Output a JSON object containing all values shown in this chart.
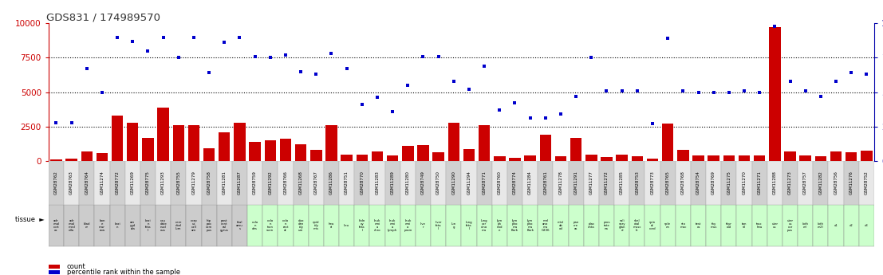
{
  "title": "GDS831 / 174989570",
  "samples": [
    "GSM28762",
    "GSM28763",
    "GSM28764",
    "GSM11274",
    "GSM28772",
    "GSM11269",
    "GSM28775",
    "GSM11293",
    "GSM28755",
    "GSM11279",
    "GSM28758",
    "GSM11281",
    "GSM11287",
    "GSM28759",
    "GSM11292",
    "GSM28766",
    "GSM11268",
    "GSM28767",
    "GSM11286",
    "GSM28751",
    "GSM28770",
    "GSM11283",
    "GSM11289",
    "GSM11280",
    "GSM28749",
    "GSM28750",
    "GSM11290",
    "GSM11294",
    "GSM28771",
    "GSM28760",
    "GSM28774",
    "GSM11284",
    "GSM28761",
    "GSM11278",
    "GSM11291",
    "GSM11277",
    "GSM11272",
    "GSM11285",
    "GSM28753",
    "GSM28773",
    "GSM28765",
    "GSM28768",
    "GSM28754",
    "GSM28769",
    "GSM11275",
    "GSM11270",
    "GSM11271",
    "GSM11288",
    "GSM11273",
    "GSM28757",
    "GSM11282",
    "GSM28756",
    "GSM11276",
    "GSM28752"
  ],
  "tissues": [
    "adr\nenal\ncort\nex",
    "adr\nenal\nmed\nulla",
    "blad\ner",
    "bon\ne\nmar\nrow",
    "brai\nn",
    "am\nygd\nala",
    "brai\nn\nfeta\nl",
    "cau\ndate\nnucl\neus",
    "cere\nebel\nlum",
    "corp\nus\ncall\nam",
    "hip\npoc\ncam\npus",
    "post\ncent\nral\ngyrus",
    "thal\namu\ns",
    "colo\nn\ndes",
    "colo\nn\ntran\nsven",
    "colo\nn\nrect\nal",
    "duo\nden\nidy\num",
    "epid\nidy\nmis",
    "hea\nrt",
    "lieu",
    "kidn\ney\nfeta\nl",
    "leuk\nemi\na\nchro",
    "leuk\nemi\na\nlymph",
    "leuk\nemi\na\nprom",
    "live\nr",
    "liver\nfeta\nl",
    "lun\ng",
    "lung\nfeta\nl",
    "lung\ncar\ncino\nma",
    "lym\nph\nnod\ne",
    "lym\npho\nma\nBurk",
    "lym\npho\nma\nBurk",
    "mel\nano\nma\nG336",
    "misl\nab\ned",
    "pan\ncre\nas",
    "plac\nenta",
    "pros\ntate\nna",
    "sali\nvary\nglan\nd",
    "skel\netal\nmusc\nle",
    "spin\nal\ncord",
    "sple\nen",
    "sto\nmac",
    "test\nes",
    "thy\nmus",
    "thyr\noid",
    "ton\nsil",
    "trac\nhea",
    "uter\nus",
    "uter\nus\ncor\npus",
    "(oth\ner)",
    "(oth\ner2)",
    "x1",
    "x2",
    "x3"
  ],
  "tissue_colors": [
    "#cccccc",
    "#cccccc",
    "#cccccc",
    "#cccccc",
    "#cccccc",
    "#cccccc",
    "#cccccc",
    "#cccccc",
    "#cccccc",
    "#cccccc",
    "#cccccc",
    "#cccccc",
    "#cccccc",
    "#ccffcc",
    "#ccffcc",
    "#ccffcc",
    "#ccffcc",
    "#ccffcc",
    "#ccffcc",
    "#ccffcc",
    "#ccffcc",
    "#ccffcc",
    "#ccffcc",
    "#ccffcc",
    "#ccffcc",
    "#ccffcc",
    "#ccffcc",
    "#ccffcc",
    "#ccffcc",
    "#ccffcc",
    "#ccffcc",
    "#ccffcc",
    "#ccffcc",
    "#ccffcc",
    "#ccffcc",
    "#ccffcc",
    "#ccffcc",
    "#ccffcc",
    "#ccffcc",
    "#ccffcc",
    "#ccffcc",
    "#ccffcc",
    "#ccffcc",
    "#ccffcc",
    "#ccffcc",
    "#ccffcc",
    "#ccffcc",
    "#ccffcc",
    "#ccffcc",
    "#ccffcc",
    "#ccffcc",
    "#ccffcc",
    "#ccffcc",
    "#ccffcc"
  ],
  "counts": [
    120,
    180,
    680,
    560,
    3300,
    2800,
    1700,
    3900,
    2600,
    2600,
    900,
    2100,
    2750,
    1400,
    1500,
    1600,
    1200,
    800,
    2600,
    480,
    480,
    700,
    380,
    1100,
    1150,
    600,
    2750,
    870,
    2600,
    320,
    240,
    380,
    1900,
    320,
    1700,
    480,
    280,
    430,
    320,
    160,
    2700,
    780,
    380,
    380,
    380,
    380,
    380,
    9700,
    680,
    380,
    320,
    680,
    620,
    750
  ],
  "percentiles": [
    28,
    28,
    67,
    50,
    90,
    87,
    80,
    90,
    75,
    90,
    64,
    86,
    90,
    76,
    75,
    77,
    65,
    63,
    78,
    67,
    41,
    46,
    36,
    55,
    76,
    76,
    58,
    52,
    69,
    37,
    42,
    31,
    31,
    34,
    47,
    75,
    51,
    51,
    51,
    27,
    89,
    51,
    50,
    50,
    50,
    51,
    50,
    98,
    58,
    51,
    47,
    58,
    64,
    63
  ],
  "ylim_left": [
    0,
    10000
  ],
  "ylim_right": [
    0,
    100
  ],
  "yticks_left": [
    0,
    2500,
    5000,
    7500,
    10000
  ],
  "yticks_right": [
    0,
    25,
    50,
    75,
    100
  ],
  "bar_color": "#cc0000",
  "scatter_color": "#0000cc",
  "background_color": "#ffffff",
  "title_color": "#333333",
  "left_axis_color": "#cc0000",
  "right_axis_color": "#0000aa"
}
